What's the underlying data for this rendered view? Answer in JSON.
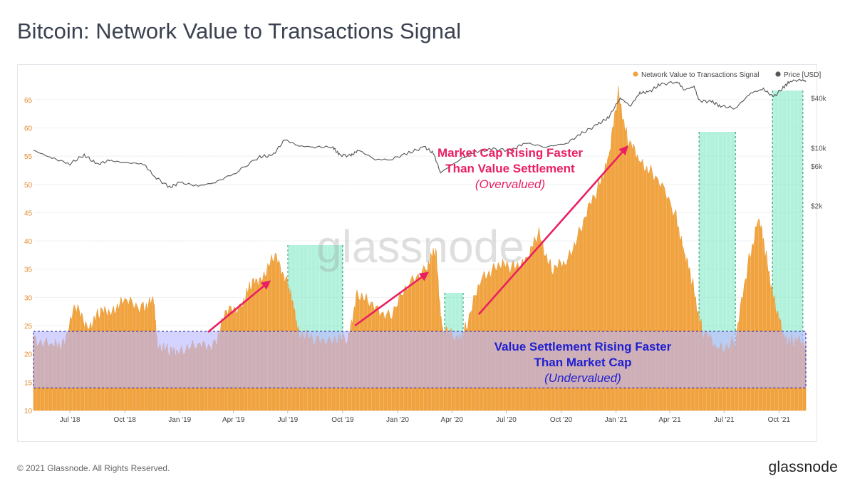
{
  "title": "Bitcoin: Network Value to Transactions Signal",
  "footer": {
    "copyright": "© 2021 Glassnode. All Rights Reserved.",
    "logo": "glassnode"
  },
  "watermark": "glassnode",
  "colors": {
    "nvts": "#f0a33f",
    "price": "#555555",
    "green": "#7fe9c4",
    "blue": "#b9b7ff",
    "pink": "#ea1f63",
    "navy": "#1f1fd0"
  },
  "annotations": {
    "overvalued_line1": "Market Cap Rising Faster",
    "overvalued_line2": "Than Value Settlement",
    "overvalued_line3": "(Overvalued)",
    "undervalued_line1": "Value Settlement Rising Faster",
    "undervalued_line2": "Than Market Cap",
    "undervalued_line3": "(Undervalued)"
  },
  "chart_data": {
    "type": "area",
    "legend": [
      "Network Value to Transactions Signal",
      "Price [USD]"
    ],
    "legend_position": "top-right",
    "x_ticks": [
      "Jul '18",
      "Oct '18",
      "Jan '19",
      "Apr '19",
      "Jul '19",
      "Oct '19",
      "Jan '20",
      "Apr '20",
      "Jul '20",
      "Oct '20",
      "Jan '21",
      "Apr '21",
      "Jul '21",
      "Oct '21"
    ],
    "y_left_ticks": [
      10,
      15,
      20,
      25,
      30,
      35,
      40,
      45,
      50,
      55,
      60,
      65
    ],
    "y_left_range": [
      10,
      67.5
    ],
    "y_right_ticks": [
      "$2k",
      "$6k",
      "$10k",
      "$40k"
    ],
    "y_right_scale": "log",
    "undervalued_band": [
      14,
      24
    ],
    "x_range": [
      "2018-05-01",
      "2021-11-15"
    ],
    "green_zones": [
      [
        "2019-07-01",
        "2019-10-01"
      ],
      [
        "2020-03-20",
        "2020-04-20"
      ],
      [
        "2021-05-20",
        "2021-07-20"
      ],
      [
        "2021-09-20",
        "2021-11-10"
      ]
    ],
    "series": [
      {
        "name": "Network Value to Transactions Signal",
        "points": [
          [
            "2018-05-01",
            23
          ],
          [
            "2018-06-01",
            21
          ],
          [
            "2018-06-20",
            22
          ],
          [
            "2018-07-10",
            28
          ],
          [
            "2018-08-01",
            25
          ],
          [
            "2018-08-20",
            27
          ],
          [
            "2018-09-10",
            28
          ],
          [
            "2018-10-01",
            29
          ],
          [
            "2018-11-01",
            28.5
          ],
          [
            "2018-11-18",
            29
          ],
          [
            "2018-11-25",
            22
          ],
          [
            "2018-12-15",
            20
          ],
          [
            "2019-01-01",
            21
          ],
          [
            "2019-02-01",
            21
          ],
          [
            "2019-03-01",
            22
          ],
          [
            "2019-03-20",
            27
          ],
          [
            "2019-04-15",
            29
          ],
          [
            "2019-05-01",
            32
          ],
          [
            "2019-05-20",
            34
          ],
          [
            "2019-06-10",
            37
          ],
          [
            "2019-06-30",
            33
          ],
          [
            "2019-07-10",
            28
          ],
          [
            "2019-07-20",
            24
          ],
          [
            "2019-08-15",
            22
          ],
          [
            "2019-09-15",
            23
          ],
          [
            "2019-10-10",
            22
          ],
          [
            "2019-10-25",
            31
          ],
          [
            "2019-11-20",
            28
          ],
          [
            "2019-12-20",
            27
          ],
          [
            "2020-01-20",
            32
          ],
          [
            "2020-02-20",
            36
          ],
          [
            "2020-03-05",
            38
          ],
          [
            "2020-03-15",
            25
          ],
          [
            "2020-04-10",
            22
          ],
          [
            "2020-04-25",
            25
          ],
          [
            "2020-05-20",
            33
          ],
          [
            "2020-06-15",
            36
          ],
          [
            "2020-07-10",
            35
          ],
          [
            "2020-08-05",
            37
          ],
          [
            "2020-08-25",
            41
          ],
          [
            "2020-09-15",
            35
          ],
          [
            "2020-10-10",
            36
          ],
          [
            "2020-11-05",
            43
          ],
          [
            "2020-12-01",
            49
          ],
          [
            "2020-12-20",
            55
          ],
          [
            "2021-01-05",
            66
          ],
          [
            "2021-01-20",
            58
          ],
          [
            "2021-02-10",
            54
          ],
          [
            "2021-03-05",
            52
          ],
          [
            "2021-04-10",
            45
          ],
          [
            "2021-04-25",
            38
          ],
          [
            "2021-05-10",
            32
          ],
          [
            "2021-05-25",
            24
          ],
          [
            "2021-06-20",
            21
          ],
          [
            "2021-07-20",
            22
          ],
          [
            "2021-08-10",
            36
          ],
          [
            "2021-08-28",
            44
          ],
          [
            "2021-09-10",
            37
          ],
          [
            "2021-09-25",
            28
          ],
          [
            "2021-10-10",
            23
          ],
          [
            "2021-10-25",
            22
          ],
          [
            "2021-11-15",
            22
          ]
        ]
      },
      {
        "name": "Price [USD]",
        "points": [
          [
            "2018-05-01",
            9300
          ],
          [
            "2018-06-01",
            7500
          ],
          [
            "2018-07-01",
            6400
          ],
          [
            "2018-07-25",
            8200
          ],
          [
            "2018-08-15",
            6300
          ],
          [
            "2018-09-05",
            7000
          ],
          [
            "2018-10-01",
            6600
          ],
          [
            "2018-11-01",
            6400
          ],
          [
            "2018-11-20",
            4500
          ],
          [
            "2018-12-15",
            3300
          ],
          [
            "2019-01-01",
            3800
          ],
          [
            "2019-02-01",
            3450
          ],
          [
            "2019-03-01",
            3800
          ],
          [
            "2019-04-05",
            5000
          ],
          [
            "2019-05-15",
            7800
          ],
          [
            "2019-06-05",
            8000
          ],
          [
            "2019-06-26",
            12500
          ],
          [
            "2019-07-20",
            10500
          ],
          [
            "2019-08-15",
            10200
          ],
          [
            "2019-09-15",
            10200
          ],
          [
            "2019-09-25",
            8200
          ],
          [
            "2019-10-15",
            8000
          ],
          [
            "2019-10-27",
            9400
          ],
          [
            "2019-11-25",
            7200
          ],
          [
            "2019-12-20",
            7200
          ],
          [
            "2020-01-20",
            8700
          ],
          [
            "2020-02-15",
            10200
          ],
          [
            "2020-03-01",
            8600
          ],
          [
            "2020-03-13",
            5000
          ],
          [
            "2020-04-10",
            6900
          ],
          [
            "2020-05-10",
            9000
          ],
          [
            "2020-06-10",
            9600
          ],
          [
            "2020-07-10",
            9300
          ],
          [
            "2020-08-01",
            11500
          ],
          [
            "2020-09-05",
            10200
          ],
          [
            "2020-10-10",
            11300
          ],
          [
            "2020-11-05",
            15000
          ],
          [
            "2020-12-01",
            19000
          ],
          [
            "2020-12-20",
            23500
          ],
          [
            "2021-01-08",
            40000
          ],
          [
            "2021-01-25",
            32000
          ],
          [
            "2021-02-10",
            46000
          ],
          [
            "2021-02-25",
            47000
          ],
          [
            "2021-03-15",
            58000
          ],
          [
            "2021-04-14",
            63000
          ],
          [
            "2021-04-25",
            50000
          ],
          [
            "2021-05-12",
            55000
          ],
          [
            "2021-05-20",
            37000
          ],
          [
            "2021-06-10",
            36000
          ],
          [
            "2021-06-25",
            32000
          ],
          [
            "2021-07-20",
            30000
          ],
          [
            "2021-08-15",
            46000
          ],
          [
            "2021-09-05",
            51000
          ],
          [
            "2021-09-22",
            41000
          ],
          [
            "2021-10-10",
            55000
          ],
          [
            "2021-10-20",
            64000
          ],
          [
            "2021-11-10",
            66000
          ],
          [
            "2021-11-15",
            63000
          ]
        ]
      }
    ]
  }
}
